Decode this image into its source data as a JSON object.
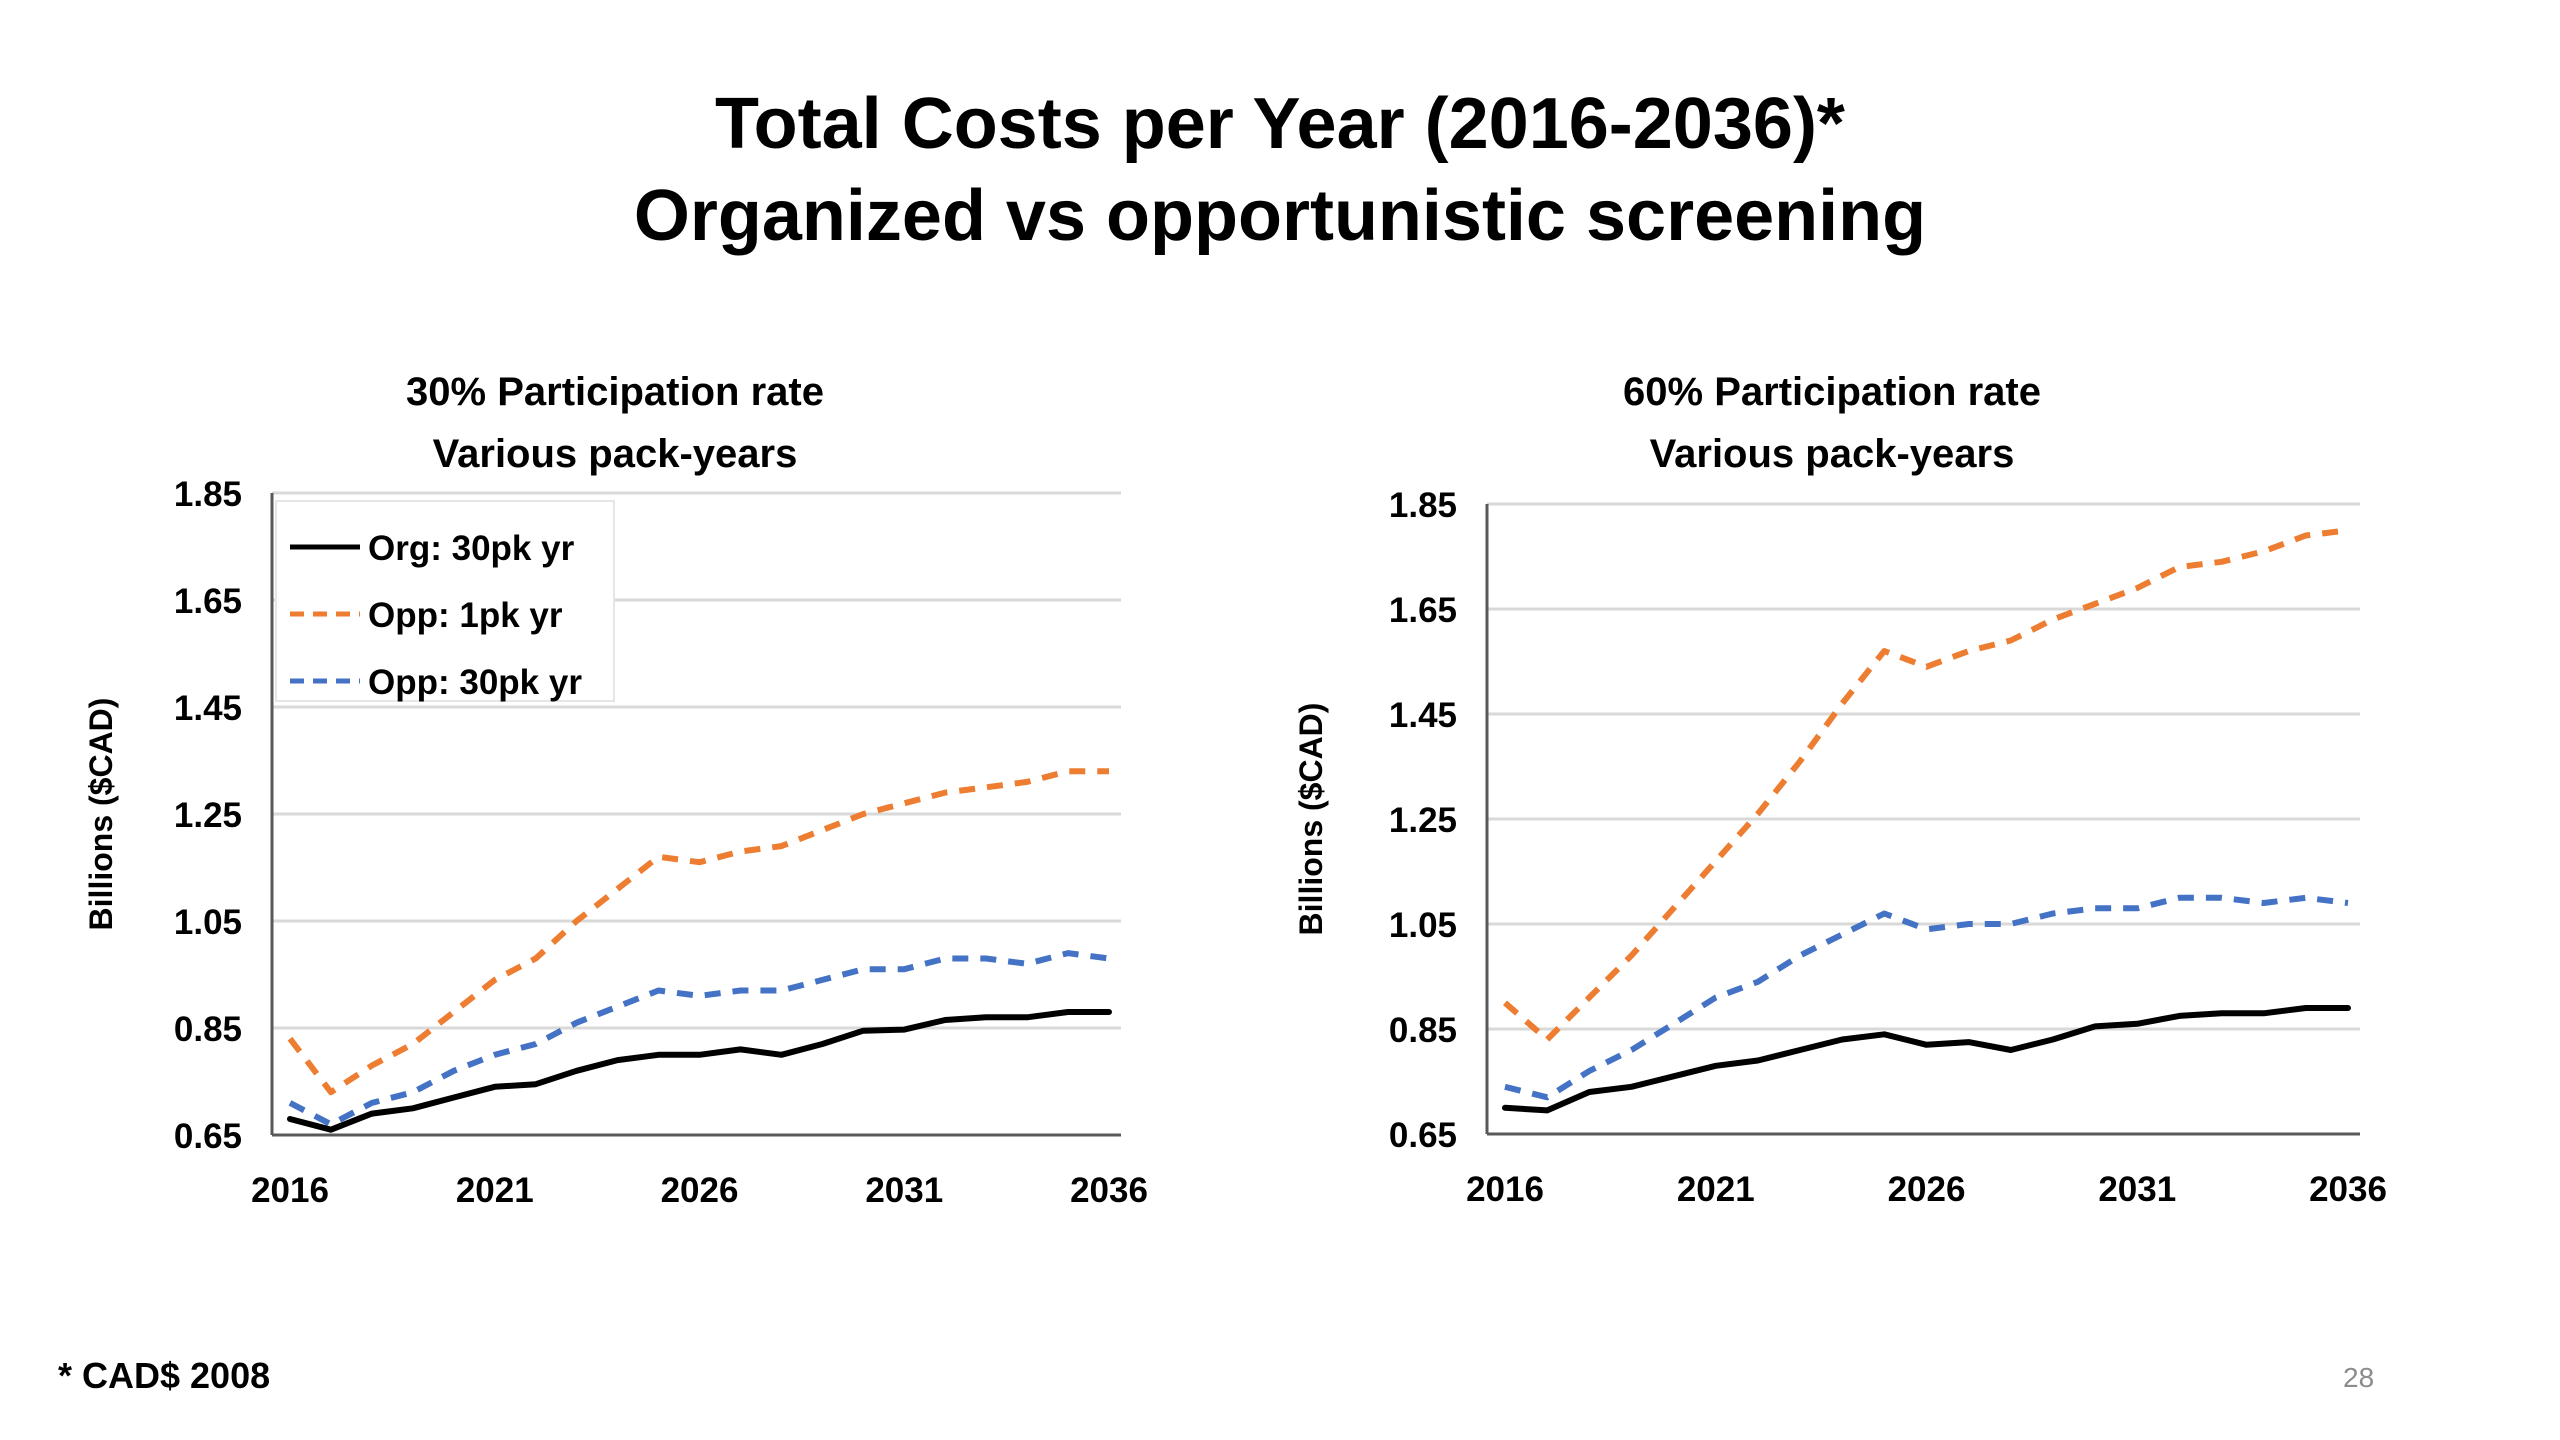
{
  "slide": {
    "title_line1": "Total Costs per Year (2016-2036)*",
    "title_line2": "Organized vs opportunistic screening",
    "footnote": "* CAD$ 2008",
    "page_number": "28"
  },
  "colors": {
    "org": "#000000",
    "opp_1pk": "#ED7D31",
    "opp_30pk": "#4472C4",
    "gridline": "#D9D9D9",
    "axis": "#595959"
  },
  "chart_data": [
    {
      "type": "line",
      "title": "30% Participation rate",
      "subtitle": "Various pack-years",
      "xlabel": "",
      "ylabel": "Billions ($CAD)",
      "xlim": [
        2016,
        2036
      ],
      "ylim": [
        0.65,
        1.85
      ],
      "x_ticks": [
        "2016",
        "2021",
        "2026",
        "2031",
        "2036"
      ],
      "y_ticks": [
        "0.65",
        "0.85",
        "1.05",
        "1.25",
        "1.45",
        "1.65",
        "1.85"
      ],
      "grid": true,
      "legend": "top-left",
      "x": [
        2016,
        2017,
        2018,
        2019,
        2020,
        2021,
        2022,
        2023,
        2024,
        2025,
        2026,
        2027,
        2028,
        2029,
        2030,
        2031,
        2032,
        2033,
        2034,
        2035,
        2036
      ],
      "series": [
        {
          "name": "Org: 30pk yr",
          "style": "solid",
          "color_key": "org",
          "values": [
            0.68,
            0.66,
            0.69,
            0.7,
            0.72,
            0.74,
            0.745,
            0.77,
            0.79,
            0.8,
            0.8,
            0.81,
            0.8,
            0.82,
            0.845,
            0.847,
            0.865,
            0.87,
            0.87,
            0.88,
            0.88
          ]
        },
        {
          "name": "Opp: 1pk yr",
          "style": "dashed",
          "color_key": "opp_1pk",
          "values": [
            0.83,
            0.73,
            0.78,
            0.82,
            0.88,
            0.94,
            0.98,
            1.05,
            1.11,
            1.17,
            1.16,
            1.18,
            1.19,
            1.22,
            1.25,
            1.27,
            1.29,
            1.3,
            1.31,
            1.33,
            1.33
          ]
        },
        {
          "name": "Opp:  30pk yr",
          "style": "dashed",
          "color_key": "opp_30pk",
          "values": [
            0.71,
            0.67,
            0.71,
            0.73,
            0.77,
            0.8,
            0.82,
            0.86,
            0.89,
            0.92,
            0.91,
            0.92,
            0.92,
            0.94,
            0.96,
            0.96,
            0.98,
            0.98,
            0.97,
            0.99,
            0.98
          ]
        }
      ]
    },
    {
      "type": "line",
      "title": "60% Participation rate",
      "subtitle": "Various pack-years",
      "xlabel": "",
      "ylabel": "Billions ($CAD)",
      "xlim": [
        2016,
        2036
      ],
      "ylim": [
        0.65,
        1.85
      ],
      "x_ticks": [
        "2016",
        "2021",
        "2026",
        "2031",
        "2036"
      ],
      "y_ticks": [
        "0.65",
        "0.85",
        "1.05",
        "1.25",
        "1.45",
        "1.65",
        "1.85"
      ],
      "grid": true,
      "legend": "none",
      "x": [
        2016,
        2017,
        2018,
        2019,
        2020,
        2021,
        2022,
        2023,
        2024,
        2025,
        2026,
        2027,
        2028,
        2029,
        2030,
        2031,
        2032,
        2033,
        2034,
        2035,
        2036
      ],
      "series": [
        {
          "name": "Org: 30pk yr",
          "style": "solid",
          "color_key": "org",
          "values": [
            0.7,
            0.695,
            0.73,
            0.74,
            0.76,
            0.78,
            0.79,
            0.81,
            0.83,
            0.84,
            0.82,
            0.825,
            0.81,
            0.83,
            0.855,
            0.86,
            0.875,
            0.88,
            0.88,
            0.89,
            0.89
          ]
        },
        {
          "name": "Opp: 1pk yr",
          "style": "dashed",
          "color_key": "opp_1pk",
          "values": [
            0.9,
            0.83,
            0.91,
            0.99,
            1.08,
            1.17,
            1.26,
            1.36,
            1.47,
            1.57,
            1.54,
            1.57,
            1.59,
            1.63,
            1.66,
            1.69,
            1.73,
            1.74,
            1.76,
            1.79,
            1.8
          ]
        },
        {
          "name": "Opp:  30pk yr",
          "style": "dashed",
          "color_key": "opp_30pk",
          "values": [
            0.74,
            0.72,
            0.77,
            0.81,
            0.86,
            0.91,
            0.94,
            0.99,
            1.03,
            1.07,
            1.04,
            1.05,
            1.05,
            1.07,
            1.08,
            1.08,
            1.1,
            1.1,
            1.09,
            1.1,
            1.09
          ]
        }
      ]
    }
  ]
}
